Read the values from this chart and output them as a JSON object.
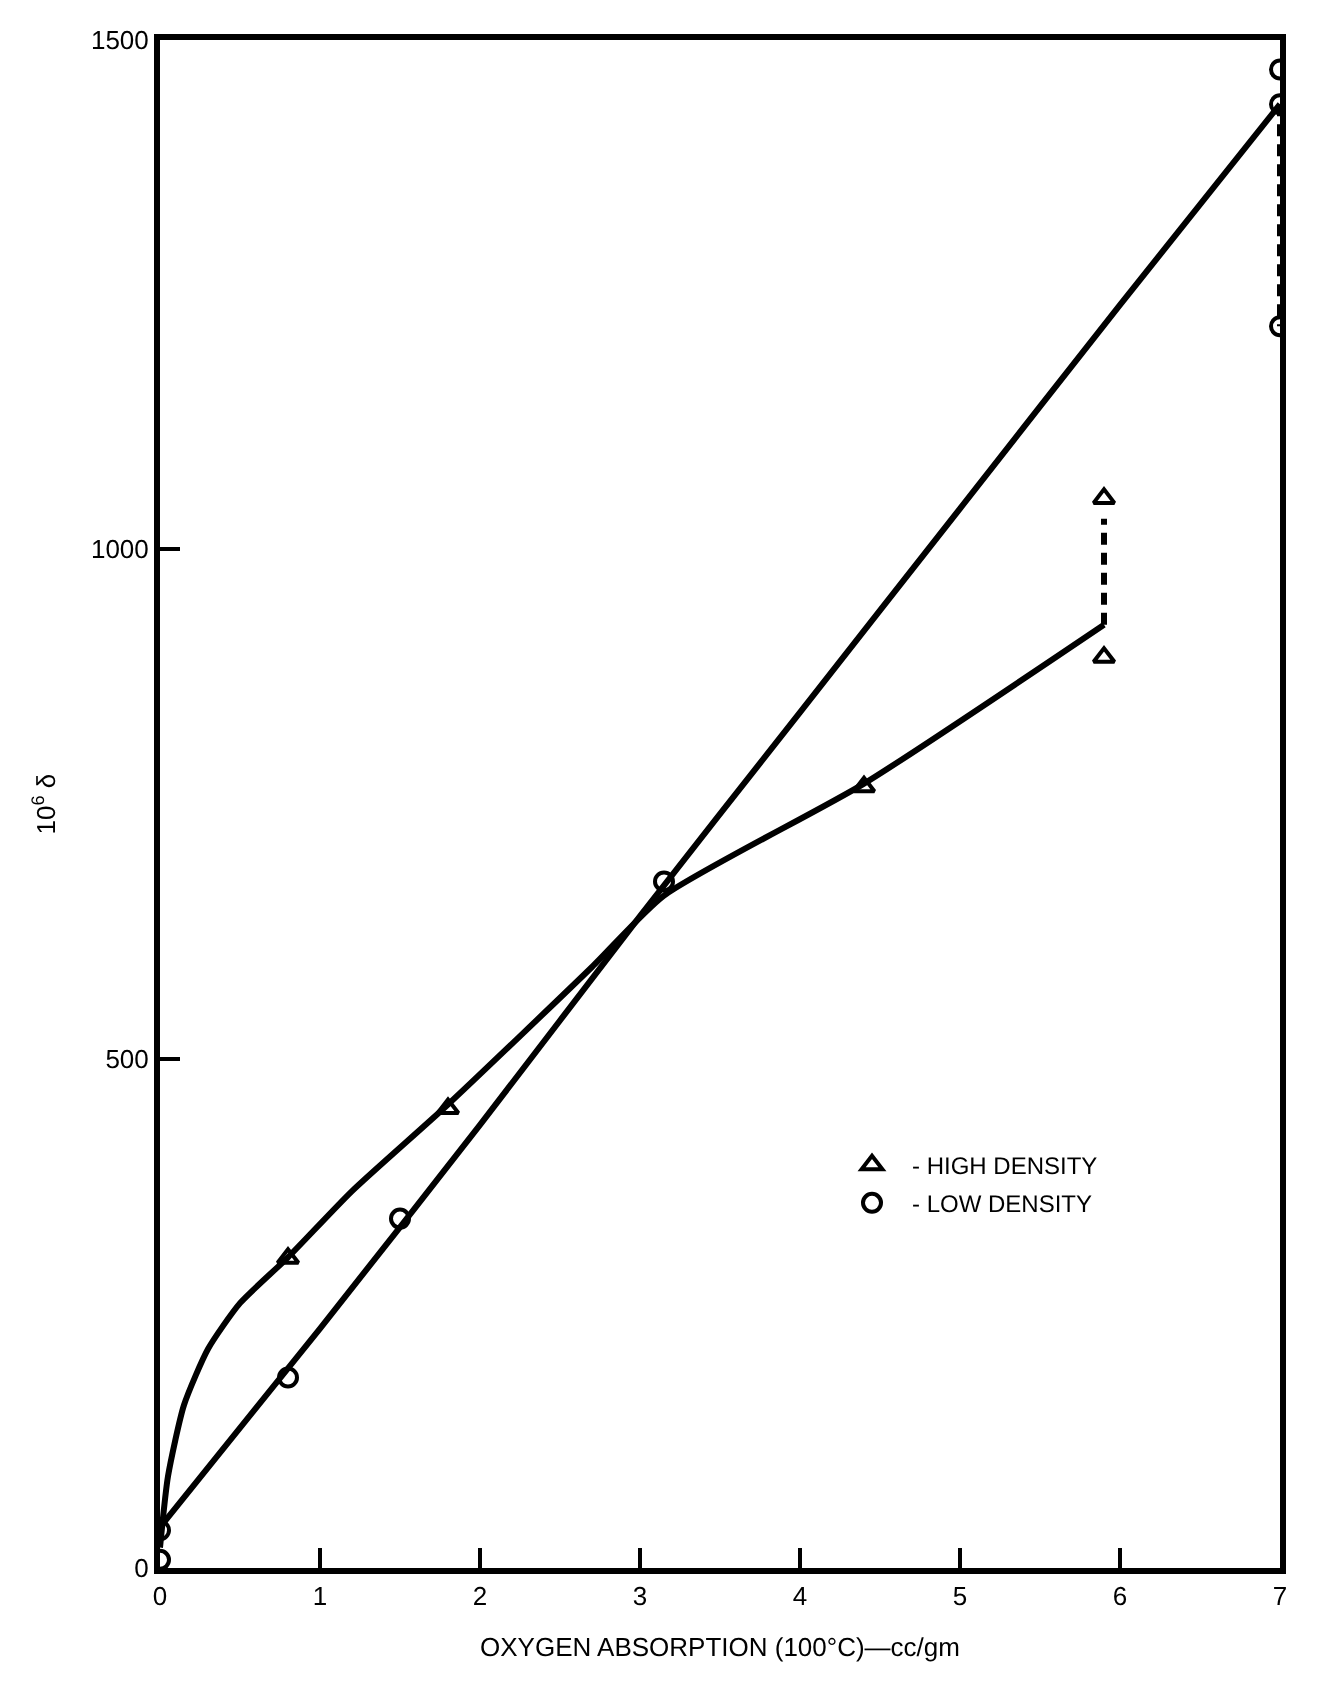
{
  "chart_data": {
    "type": "scatter",
    "xlabel": "OXYGEN ABSORPTION (100°C)—cc/gm",
    "ylabel": "10$^{6}$ δ",
    "xlim": [
      0,
      7
    ],
    "ylim": [
      0,
      1500
    ],
    "xticks": [
      0,
      1,
      2,
      3,
      4,
      5,
      6,
      7
    ],
    "yticks": [
      0,
      500,
      1000,
      1500
    ],
    "legend": "bottom right",
    "series": [
      {
        "name": "- HIGH DENSITY",
        "marker": "triangle",
        "color": "#000000",
        "x": [
          0.8,
          1.8,
          4.4,
          5.9,
          5.9
        ],
        "values": [
          304,
          451,
          767,
          894,
          1050
        ]
      },
      {
        "name": "- LOW DENSITY",
        "marker": "circle",
        "color": "#000000",
        "x": [
          0,
          0,
          0.8,
          1.5,
          3.15,
          7,
          7,
          7
        ],
        "values": [
          8,
          37,
          187,
          343,
          674,
          1471,
          1437,
          1219
        ]
      },
      {
        "type": "line",
        "marker": "none",
        "line_style": "solid",
        "color": "#000000",
        "x": [
          0,
          0.05,
          0.15,
          0.3,
          0.5,
          0.8,
          1.2,
          1.8,
          2.7,
          3.15,
          4.4,
          5.9
        ],
        "values": [
          20,
          90,
          160,
          215,
          260,
          305,
          370,
          455,
          590,
          660,
          770,
          926
        ]
      },
      {
        "type": "line",
        "marker": "none",
        "line_style": "solid",
        "color": "#000000",
        "x": [
          0,
          1,
          2,
          3,
          4,
          5,
          6,
          7
        ],
        "values": [
          40,
          235,
          435,
          640,
          840,
          1040,
          1240,
          1437
        ]
      },
      {
        "type": "line",
        "marker": "none",
        "line_style": "dashed",
        "color": "#000000",
        "x": [
          5.9,
          5.9
        ],
        "values": [
          926,
          1030
        ]
      },
      {
        "type": "line",
        "marker": "none",
        "line_style": "dashed",
        "color": "#000000",
        "x": [
          7,
          7
        ],
        "values": [
          1437,
          1219
        ]
      }
    ]
  }
}
